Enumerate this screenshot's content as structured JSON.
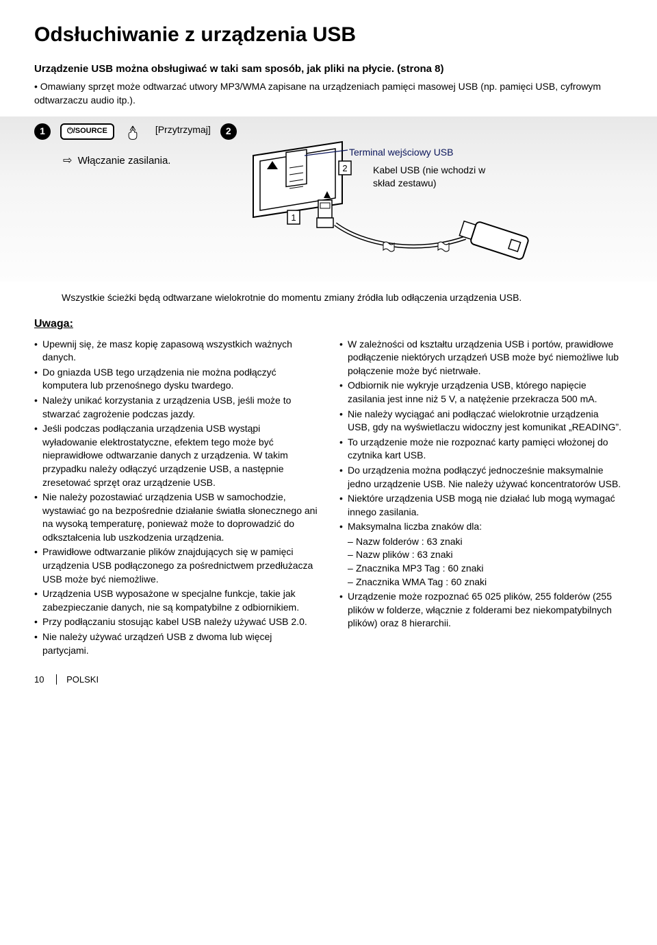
{
  "title": "Odsłuchiwanie z urządzenia USB",
  "subtitle": "Urządzenie USB można obsługiwać w taki sam sposób, jak pliki na płycie. (strona 8)",
  "intro_bullet": "Omawiany sprzęt może odtwarzać utwory MP3/WMA zapisane na urządzeniach pamięci masowej USB (np. pamięci USB, cyfrowym odtwarzaczu audio itp.).",
  "step1_num": "1",
  "step2_num": "2",
  "source_btn": "⏻/SOURCE",
  "hold_label": "[Przytrzymaj]",
  "power_on_arrow": "⇨",
  "power_on": "Włączanie zasilania.",
  "diagram": {
    "callout2_num": "2",
    "callout1_num": "1",
    "terminal_label": "Terminal wejściowy USB",
    "cable_label": "Kabel USB (nie wchodzi w skład zestawu)"
  },
  "repeat_note": "Wszystkie ścieżki będą odtwarzane wielokrotnie do momentu zmiany źródła lub odłączenia urządzenia USB.",
  "uwaga_heading": "Uwaga:",
  "notes_left": [
    "Upewnij się, że masz kopię zapasową wszystkich ważnych danych.",
    "Do gniazda USB tego urządzenia nie można podłączyć komputera lub przenośnego dysku twardego.",
    "Należy unikać korzystania z urządzenia USB, jeśli może to stwarzać zagrożenie podczas jazdy.",
    "Jeśli podczas podłączania urządzenia USB wystąpi wyładowanie elektrostatyczne, efektem tego może być nieprawidłowe odtwarzanie danych z urządzenia. W takim przypadku należy odłączyć urządzenie USB, a następnie zresetować sprzęt oraz urządzenie USB.",
    "Nie należy pozostawiać urządzenia USB w samochodzie, wystawiać go na bezpośrednie działanie światła słonecznego ani na wysoką temperaturę, ponieważ może to doprowadzić do odkształcenia lub uszkodzenia urządzenia.",
    "Prawidłowe odtwarzanie plików znajdujących się w pamięci urządzenia USB podłączonego za pośrednictwem przedłużacza USB może być niemożliwe.",
    "Urządzenia USB wyposażone w specjalne funkcje, takie jak zabezpieczanie danych, nie są kompatybilne z odbiornikiem.",
    "Przy podłączaniu stosując kabel USB należy używać USB 2.0.",
    "Nie należy używać urządzeń USB z dwoma lub więcej partycjami."
  ],
  "notes_right": [
    {
      "text": "W zależności od kształtu urządzenia USB i portów, prawidłowe podłączenie niektórych urządzeń USB może być niemożliwe lub połączenie może być nietrwałe."
    },
    {
      "text": "Odbiornik nie wykryje urządzenia USB, którego napięcie zasilania jest inne niż 5 V, a natężenie przekracza 500 mA."
    },
    {
      "text": "Nie należy wyciągać ani podłączać wielokrotnie urządzenia USB, gdy na wyświetlaczu widoczny jest komunikat „READING”."
    },
    {
      "text": "To urządzenie może nie rozpoznać karty pamięci włożonej do czytnika kart USB."
    },
    {
      "text": "Do urządzenia można podłączyć jednocześnie maksymalnie jedno urządzenie USB. Nie należy używać koncentratorów USB."
    },
    {
      "text": "Niektóre urządzenia USB mogą nie działać lub mogą wymagać innego zasilania."
    },
    {
      "text": "Maksymalna liczba znaków dla:",
      "sub": [
        "Nazw folderów : 63 znaki",
        "Nazw plików : 63 znaki",
        "Znacznika MP3 Tag : 60 znaki",
        "Znacznika WMA Tag : 60 znaki"
      ]
    },
    {
      "text": "Urządzenie może rozpoznać 65 025 plików, 255 folderów (255 plików w folderze, włącznie z folderami bez niekompatybilnych plików) oraz 8 hierarchii."
    }
  ],
  "footer": {
    "page": "10",
    "lang": "POLSKI"
  },
  "colors": {
    "blue": "#0a155a"
  }
}
